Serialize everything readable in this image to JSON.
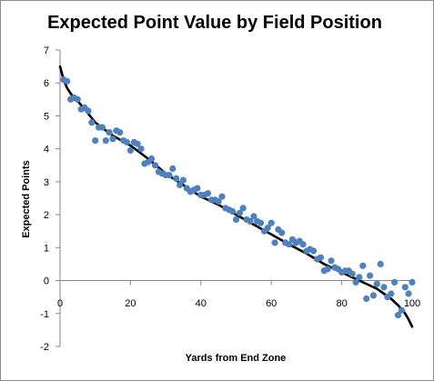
{
  "chart_data": {
    "type": "scatter",
    "title": "Expected Point Value by Field Position",
    "xlabel": "Yards from End Zone",
    "ylabel": "Expected Points",
    "xlim": [
      0,
      100
    ],
    "ylim": [
      -2,
      7
    ],
    "xticks": [
      0,
      20,
      40,
      60,
      80,
      100
    ],
    "yticks": [
      -2,
      -1,
      0,
      1,
      2,
      3,
      4,
      5,
      6,
      7
    ],
    "grid": false,
    "legend": "none",
    "point_color": "#4f81bd",
    "trend_color": "#000000",
    "series": [
      {
        "type": "scatter",
        "x": [
          1,
          2,
          3,
          4,
          5,
          6,
          7,
          8,
          9,
          10,
          11,
          12,
          13,
          14,
          15,
          16,
          17,
          18,
          19,
          20,
          21,
          22,
          23,
          24,
          25,
          26,
          27,
          28,
          29,
          30,
          31,
          32,
          33,
          34,
          35,
          36,
          37,
          38,
          39,
          40,
          41,
          42,
          43,
          44,
          45,
          46,
          47,
          48,
          49,
          50,
          51,
          52,
          53,
          54,
          55,
          56,
          57,
          58,
          59,
          60,
          61,
          62,
          63,
          64,
          65,
          66,
          67,
          68,
          69,
          70,
          71,
          72,
          73,
          74,
          75,
          76,
          77,
          78,
          79,
          80,
          81,
          82,
          83,
          84,
          85,
          86,
          87,
          88,
          89,
          90,
          91,
          92,
          93,
          94,
          95,
          96,
          97,
          98,
          99,
          100
        ],
        "y": [
          6.1,
          6.05,
          5.5,
          5.55,
          5.5,
          5.2,
          5.25,
          5.15,
          4.8,
          4.25,
          4.65,
          4.65,
          4.25,
          4.5,
          4.3,
          4.55,
          4.5,
          4.25,
          4.2,
          3.95,
          4.2,
          4.15,
          4.0,
          3.55,
          3.6,
          3.7,
          3.5,
          3.3,
          3.25,
          3.2,
          3.2,
          3.4,
          3.1,
          2.9,
          3.05,
          2.8,
          2.7,
          2.75,
          2.8,
          2.6,
          2.6,
          2.65,
          2.45,
          2.45,
          2.4,
          2.55,
          2.2,
          2.15,
          2.1,
          1.85,
          2.05,
          2.2,
          1.85,
          1.8,
          1.95,
          1.8,
          1.75,
          1.5,
          1.6,
          1.75,
          1.15,
          1.55,
          1.45,
          1.15,
          1.1,
          1.25,
          1.15,
          1.2,
          1.1,
          0.9,
          0.95,
          0.9,
          0.65,
          0.7,
          0.3,
          0.35,
          0.6,
          0.4,
          0.35,
          0.25,
          0.3,
          0.3,
          0.2,
          -0.05,
          0.1,
          0.45,
          -0.55,
          0.15,
          -0.45,
          -0.1,
          0.5,
          -0.2,
          -0.5,
          -0.4,
          -0.05,
          -1.05,
          -0.9,
          -0.2,
          -0.4,
          -0.05
        ]
      },
      {
        "type": "line",
        "x": [
          0,
          1,
          2,
          3,
          4,
          5,
          7,
          10,
          15,
          20,
          25,
          30,
          35,
          40,
          45,
          50,
          55,
          60,
          65,
          70,
          75,
          80,
          85,
          88,
          90,
          92,
          94,
          95,
          96,
          97,
          98,
          99,
          100
        ],
        "y": [
          6.5,
          6.1,
          5.85,
          5.68,
          5.55,
          5.45,
          5.2,
          4.8,
          4.4,
          4.1,
          3.7,
          3.25,
          2.9,
          2.55,
          2.3,
          2.0,
          1.7,
          1.4,
          1.1,
          0.82,
          0.5,
          0.25,
          0.0,
          -0.15,
          -0.25,
          -0.4,
          -0.55,
          -0.65,
          -0.75,
          -0.87,
          -1.0,
          -1.18,
          -1.4
        ]
      }
    ]
  }
}
